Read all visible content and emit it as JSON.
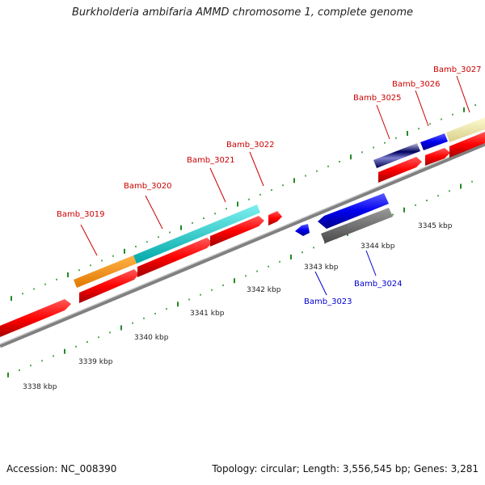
{
  "title": "Burkholderia ambifaria AMMD chromosome 1, complete genome",
  "footer": {
    "accession_label": "Accession:",
    "accession": "NC_008390",
    "topology_label": "Topology:",
    "topology": "circular",
    "length_label": "Length:",
    "length": "3,556,545 bp",
    "genes_label": "Genes:",
    "genes": "3,281"
  },
  "scale_labels": [
    "3338 kbp",
    "3339 kbp",
    "3340 kbp",
    "3341 kbp",
    "3342 kbp",
    "3343 kbp",
    "3344 kbp",
    "3345 kbp"
  ],
  "colors": {
    "forward_label": "#cc0000",
    "reverse_label": "#0000cc",
    "tick": "#228b22",
    "backbone": "#808080"
  },
  "genes_list": [
    {
      "label": "Bamb_3019",
      "strand": "forward"
    },
    {
      "label": "Bamb_3020",
      "strand": "forward"
    },
    {
      "label": "Bamb_3021",
      "strand": "forward"
    },
    {
      "label": "Bamb_3022",
      "strand": "forward"
    },
    {
      "label": "Bamb_3023",
      "strand": "reverse"
    },
    {
      "label": "Bamb_3024",
      "strand": "reverse"
    },
    {
      "label": "Bamb_3025",
      "strand": "forward"
    },
    {
      "label": "Bamb_3026",
      "strand": "forward"
    },
    {
      "label": "Bamb_3027",
      "strand": "forward"
    }
  ]
}
